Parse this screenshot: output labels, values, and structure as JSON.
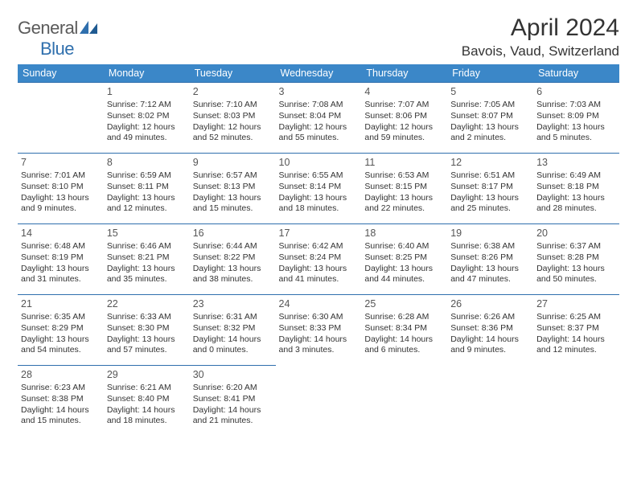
{
  "logo": {
    "text1": "General",
    "text2": "Blue"
  },
  "header": {
    "month": "April 2024",
    "location": "Bavois, Vaud, Switzerland"
  },
  "colors": {
    "header_bg": "#3b87c8",
    "header_fg": "#ffffff",
    "border": "#2f6fad",
    "text": "#333333",
    "logo_gray": "#5a5a5a",
    "logo_blue": "#2f6fad"
  },
  "weekdays": [
    "Sunday",
    "Monday",
    "Tuesday",
    "Wednesday",
    "Thursday",
    "Friday",
    "Saturday"
  ],
  "weeks": [
    [
      null,
      {
        "n": "1",
        "sr": "7:12 AM",
        "ss": "8:02 PM",
        "d1": "12 hours",
        "d2": "and 49 minutes."
      },
      {
        "n": "2",
        "sr": "7:10 AM",
        "ss": "8:03 PM",
        "d1": "12 hours",
        "d2": "and 52 minutes."
      },
      {
        "n": "3",
        "sr": "7:08 AM",
        "ss": "8:04 PM",
        "d1": "12 hours",
        "d2": "and 55 minutes."
      },
      {
        "n": "4",
        "sr": "7:07 AM",
        "ss": "8:06 PM",
        "d1": "12 hours",
        "d2": "and 59 minutes."
      },
      {
        "n": "5",
        "sr": "7:05 AM",
        "ss": "8:07 PM",
        "d1": "13 hours",
        "d2": "and 2 minutes."
      },
      {
        "n": "6",
        "sr": "7:03 AM",
        "ss": "8:09 PM",
        "d1": "13 hours",
        "d2": "and 5 minutes."
      }
    ],
    [
      {
        "n": "7",
        "sr": "7:01 AM",
        "ss": "8:10 PM",
        "d1": "13 hours",
        "d2": "and 9 minutes."
      },
      {
        "n": "8",
        "sr": "6:59 AM",
        "ss": "8:11 PM",
        "d1": "13 hours",
        "d2": "and 12 minutes."
      },
      {
        "n": "9",
        "sr": "6:57 AM",
        "ss": "8:13 PM",
        "d1": "13 hours",
        "d2": "and 15 minutes."
      },
      {
        "n": "10",
        "sr": "6:55 AM",
        "ss": "8:14 PM",
        "d1": "13 hours",
        "d2": "and 18 minutes."
      },
      {
        "n": "11",
        "sr": "6:53 AM",
        "ss": "8:15 PM",
        "d1": "13 hours",
        "d2": "and 22 minutes."
      },
      {
        "n": "12",
        "sr": "6:51 AM",
        "ss": "8:17 PM",
        "d1": "13 hours",
        "d2": "and 25 minutes."
      },
      {
        "n": "13",
        "sr": "6:49 AM",
        "ss": "8:18 PM",
        "d1": "13 hours",
        "d2": "and 28 minutes."
      }
    ],
    [
      {
        "n": "14",
        "sr": "6:48 AM",
        "ss": "8:19 PM",
        "d1": "13 hours",
        "d2": "and 31 minutes."
      },
      {
        "n": "15",
        "sr": "6:46 AM",
        "ss": "8:21 PM",
        "d1": "13 hours",
        "d2": "and 35 minutes."
      },
      {
        "n": "16",
        "sr": "6:44 AM",
        "ss": "8:22 PM",
        "d1": "13 hours",
        "d2": "and 38 minutes."
      },
      {
        "n": "17",
        "sr": "6:42 AM",
        "ss": "8:24 PM",
        "d1": "13 hours",
        "d2": "and 41 minutes."
      },
      {
        "n": "18",
        "sr": "6:40 AM",
        "ss": "8:25 PM",
        "d1": "13 hours",
        "d2": "and 44 minutes."
      },
      {
        "n": "19",
        "sr": "6:38 AM",
        "ss": "8:26 PM",
        "d1": "13 hours",
        "d2": "and 47 minutes."
      },
      {
        "n": "20",
        "sr": "6:37 AM",
        "ss": "8:28 PM",
        "d1": "13 hours",
        "d2": "and 50 minutes."
      }
    ],
    [
      {
        "n": "21",
        "sr": "6:35 AM",
        "ss": "8:29 PM",
        "d1": "13 hours",
        "d2": "and 54 minutes."
      },
      {
        "n": "22",
        "sr": "6:33 AM",
        "ss": "8:30 PM",
        "d1": "13 hours",
        "d2": "and 57 minutes."
      },
      {
        "n": "23",
        "sr": "6:31 AM",
        "ss": "8:32 PM",
        "d1": "14 hours",
        "d2": "and 0 minutes."
      },
      {
        "n": "24",
        "sr": "6:30 AM",
        "ss": "8:33 PM",
        "d1": "14 hours",
        "d2": "and 3 minutes."
      },
      {
        "n": "25",
        "sr": "6:28 AM",
        "ss": "8:34 PM",
        "d1": "14 hours",
        "d2": "and 6 minutes."
      },
      {
        "n": "26",
        "sr": "6:26 AM",
        "ss": "8:36 PM",
        "d1": "14 hours",
        "d2": "and 9 minutes."
      },
      {
        "n": "27",
        "sr": "6:25 AM",
        "ss": "8:37 PM",
        "d1": "14 hours",
        "d2": "and 12 minutes."
      }
    ],
    [
      {
        "n": "28",
        "sr": "6:23 AM",
        "ss": "8:38 PM",
        "d1": "14 hours",
        "d2": "and 15 minutes."
      },
      {
        "n": "29",
        "sr": "6:21 AM",
        "ss": "8:40 PM",
        "d1": "14 hours",
        "d2": "and 18 minutes."
      },
      {
        "n": "30",
        "sr": "6:20 AM",
        "ss": "8:41 PM",
        "d1": "14 hours",
        "d2": "and 21 minutes."
      },
      null,
      null,
      null,
      null
    ]
  ],
  "labels": {
    "sunrise": "Sunrise:",
    "sunset": "Sunset:",
    "daylight": "Daylight:"
  }
}
